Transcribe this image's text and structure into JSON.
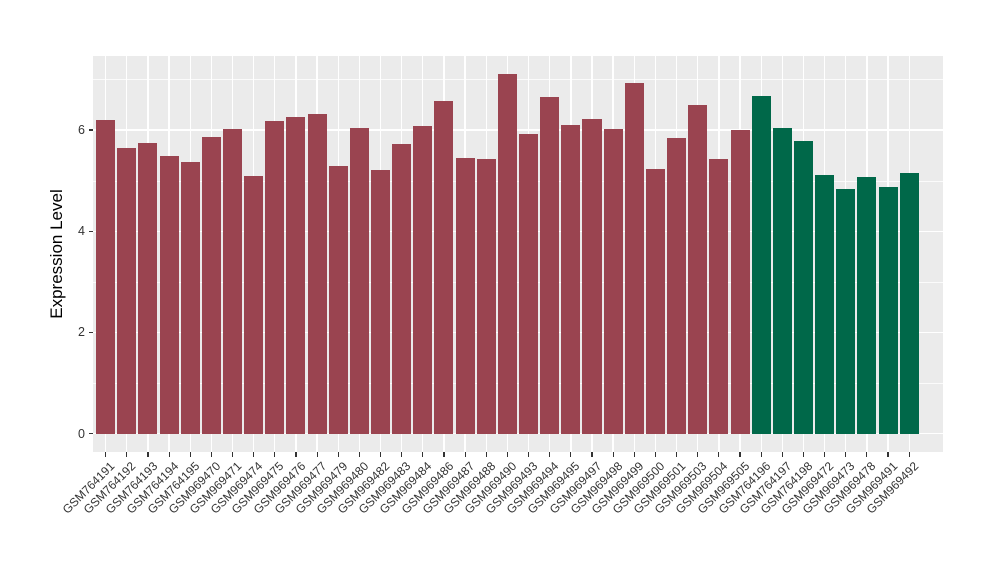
{
  "chart_data": {
    "type": "bar",
    "title": "",
    "xlabel": "",
    "ylabel": "Expression Level",
    "categories": [
      "GSM764191",
      "GSM764192",
      "GSM764193",
      "GSM764194",
      "GSM764195",
      "GSM969470",
      "GSM969471",
      "GSM969474",
      "GSM969475",
      "GSM969476",
      "GSM969477",
      "GSM969479",
      "GSM969480",
      "GSM969482",
      "GSM969483",
      "GSM969484",
      "GSM969486",
      "GSM969487",
      "GSM969488",
      "GSM969490",
      "GSM969493",
      "GSM969494",
      "GSM969495",
      "GSM969497",
      "GSM969498",
      "GSM969499",
      "GSM969500",
      "GSM969501",
      "GSM969503",
      "GSM969504",
      "GSM969505",
      "GSM764196",
      "GSM764197",
      "GSM764198",
      "GSM969472",
      "GSM969473",
      "GSM969478",
      "GSM969491",
      "GSM969492"
    ],
    "values": [
      6.2,
      5.65,
      5.75,
      5.49,
      5.37,
      5.87,
      6.02,
      5.09,
      6.18,
      6.25,
      6.31,
      5.29,
      6.03,
      5.21,
      5.72,
      6.08,
      6.58,
      5.45,
      5.43,
      7.1,
      5.92,
      6.65,
      6.1,
      6.22,
      6.02,
      6.92,
      5.23,
      5.85,
      6.49,
      5.43,
      6.0,
      6.67,
      6.04,
      5.79,
      5.11,
      4.83,
      5.08,
      4.87,
      5.15
    ],
    "bar_colors": [
      "#9A4450",
      "#9A4450",
      "#9A4450",
      "#9A4450",
      "#9A4450",
      "#9A4450",
      "#9A4450",
      "#9A4450",
      "#9A4450",
      "#9A4450",
      "#9A4450",
      "#9A4450",
      "#9A4450",
      "#9A4450",
      "#9A4450",
      "#9A4450",
      "#9A4450",
      "#9A4450",
      "#9A4450",
      "#9A4450",
      "#9A4450",
      "#9A4450",
      "#9A4450",
      "#9A4450",
      "#9A4450",
      "#9A4450",
      "#9A4450",
      "#9A4450",
      "#9A4450",
      "#9A4450",
      "#9A4450",
      "#006849",
      "#006849",
      "#006849",
      "#006849",
      "#006849",
      "#006849",
      "#006849",
      "#006849"
    ],
    "palette": {
      "maroon_group": "#9A4450",
      "green_group": "#006849"
    },
    "yticks": [
      0,
      2,
      4,
      6
    ],
    "y_minor_ticks": [
      1,
      3,
      5,
      7
    ],
    "ylim": [
      -0.36,
      7.46
    ],
    "grid": "on",
    "legend_position": "none",
    "panel_background": "#EBEBEB",
    "grid_color": "#FFFFFF",
    "axis_tick_color": "#333333",
    "axis_text_color": "#333333",
    "axis_title_color": "#000000",
    "x_label_rotation_deg": 45
  }
}
